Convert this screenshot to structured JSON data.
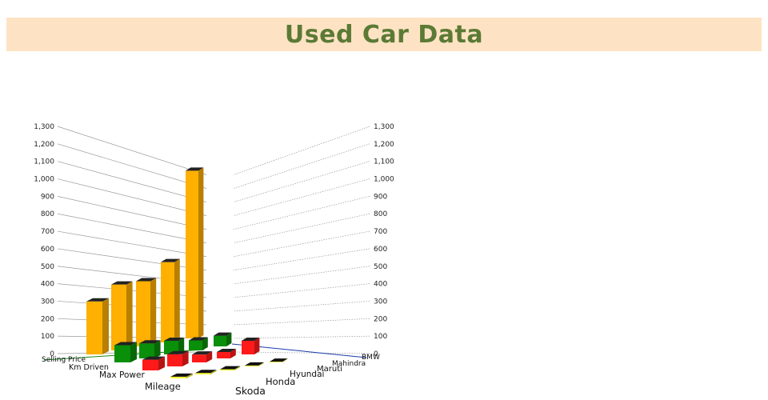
{
  "page": {
    "title": "Used Car Data"
  },
  "chart_data": {
    "type": "bar",
    "subtype": "3d-column",
    "title": "Used Car Data",
    "x_categories": [
      "Selling Price",
      "Km Driven",
      "Max Power",
      "Mileage"
    ],
    "z_categories": [
      "Skoda",
      "Honda",
      "Hyundai",
      "Maruti",
      "Mahindra",
      "BMW"
    ],
    "series": [
      {
        "name": "Skoda",
        "values": [
          370,
          120,
          75,
          12
        ]
      },
      {
        "name": "Honda",
        "values": [
          460,
          105,
          85,
          10
        ]
      },
      {
        "name": "Hyundai",
        "values": [
          455,
          95,
          55,
          8
        ]
      },
      {
        "name": "Maruti",
        "values": [
          560,
          70,
          45,
          6
        ]
      },
      {
        "name": "Mahindra",
        "values": [
          1170,
          75,
          95,
          5
        ]
      },
      {
        "name": "BMW",
        "values": [
          0,
          0,
          0,
          0
        ]
      }
    ],
    "y_ticks": [
      "0",
      "100",
      "200",
      "300",
      "400",
      "500",
      "600",
      "700",
      "800",
      "900",
      "1,000",
      "1,100",
      "1,200",
      "1,300"
    ],
    "ylim": [
      0,
      1300
    ],
    "colors": {
      "Selling Price": "#ffb000",
      "Km Driven": "#0a8f0a",
      "Max Power": "#ff1a1a",
      "Mileage": "#ffff33"
    },
    "grid": true,
    "legend": "none"
  }
}
